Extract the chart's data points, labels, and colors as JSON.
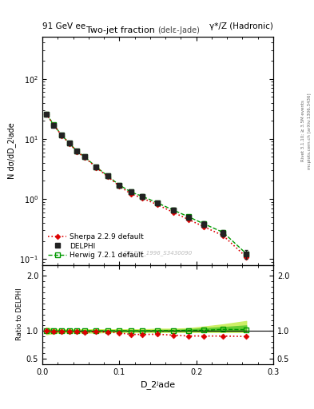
{
  "title_main": "Two-jet fraction",
  "title_sub": "(delε-Jade)",
  "header_left": "91 GeV ee",
  "header_right": "γ*/Z (Hadronic)",
  "ylabel_main": "N dσ/dD_2ʲade",
  "ylabel_ratio": "Ratio to DELPHI",
  "xlabel": "D_2ʲade",
  "watermark": "DELPHI_1996_S3430090",
  "right_label1": "Rivet 3.1.10; ≥ 3.5M events",
  "right_label2": "mcplots.cern.ch [arXiv:1306.3436]",
  "xlim": [
    0.0,
    0.3
  ],
  "ylim_main": [
    0.08,
    500
  ],
  "ylim_ratio": [
    0.4,
    2.2
  ],
  "ratio_yticks": [
    0.5,
    1.0,
    2.0
  ],
  "delphi_x": [
    0.005,
    0.015,
    0.025,
    0.035,
    0.045,
    0.055,
    0.07,
    0.085,
    0.1,
    0.115,
    0.13,
    0.15,
    0.17,
    0.19,
    0.21,
    0.235,
    0.265
  ],
  "delphi_y": [
    26.0,
    17.0,
    11.5,
    8.5,
    6.2,
    5.0,
    3.4,
    2.4,
    1.7,
    1.3,
    1.1,
    0.85,
    0.65,
    0.5,
    0.38,
    0.27,
    0.12
  ],
  "delphi_ye": [
    1.5,
    1.0,
    0.7,
    0.5,
    0.4,
    0.3,
    0.2,
    0.15,
    0.12,
    0.1,
    0.09,
    0.07,
    0.06,
    0.05,
    0.04,
    0.03,
    0.02
  ],
  "herwig_x": [
    0.005,
    0.015,
    0.025,
    0.035,
    0.045,
    0.055,
    0.07,
    0.085,
    0.1,
    0.115,
    0.13,
    0.15,
    0.17,
    0.19,
    0.21,
    0.235,
    0.265
  ],
  "herwig_y": [
    26.1,
    17.05,
    11.52,
    8.52,
    6.21,
    5.02,
    3.41,
    2.41,
    1.71,
    1.305,
    1.105,
    0.855,
    0.655,
    0.505,
    0.385,
    0.278,
    0.123
  ],
  "sherpa_x": [
    0.005,
    0.015,
    0.025,
    0.035,
    0.045,
    0.055,
    0.07,
    0.085,
    0.1,
    0.115,
    0.13,
    0.15,
    0.17,
    0.19,
    0.21,
    0.235,
    0.265
  ],
  "sherpa_y": [
    26.0,
    16.9,
    11.4,
    8.4,
    6.1,
    4.9,
    3.35,
    2.35,
    1.64,
    1.22,
    1.03,
    0.8,
    0.6,
    0.455,
    0.345,
    0.245,
    0.108
  ],
  "herwig_band_lo": [
    0.97,
    0.98,
    0.99,
    0.99,
    0.99,
    0.99,
    0.99,
    1.0,
    1.0,
    1.0,
    1.0,
    1.0,
    1.0,
    1.0,
    1.0,
    1.0,
    1.0
  ],
  "herwig_band_hi": [
    1.03,
    1.02,
    1.01,
    1.01,
    1.01,
    1.01,
    1.01,
    1.01,
    1.01,
    1.01,
    1.01,
    1.02,
    1.02,
    1.03,
    1.05,
    1.07,
    1.1
  ],
  "herwig_band_lo2": [
    0.94,
    0.96,
    0.97,
    0.97,
    0.97,
    0.97,
    0.97,
    0.98,
    0.98,
    0.98,
    0.98,
    0.98,
    0.98,
    0.98,
    0.98,
    0.98,
    0.98
  ],
  "herwig_band_hi2": [
    1.06,
    1.04,
    1.03,
    1.03,
    1.03,
    1.03,
    1.03,
    1.03,
    1.03,
    1.03,
    1.03,
    1.04,
    1.04,
    1.05,
    1.08,
    1.12,
    1.18
  ],
  "delphi_color": "#222222",
  "herwig_color": "#009900",
  "sherpa_color": "#dd0000",
  "band_inner": "#66cc33",
  "band_outer": "#ccee66"
}
